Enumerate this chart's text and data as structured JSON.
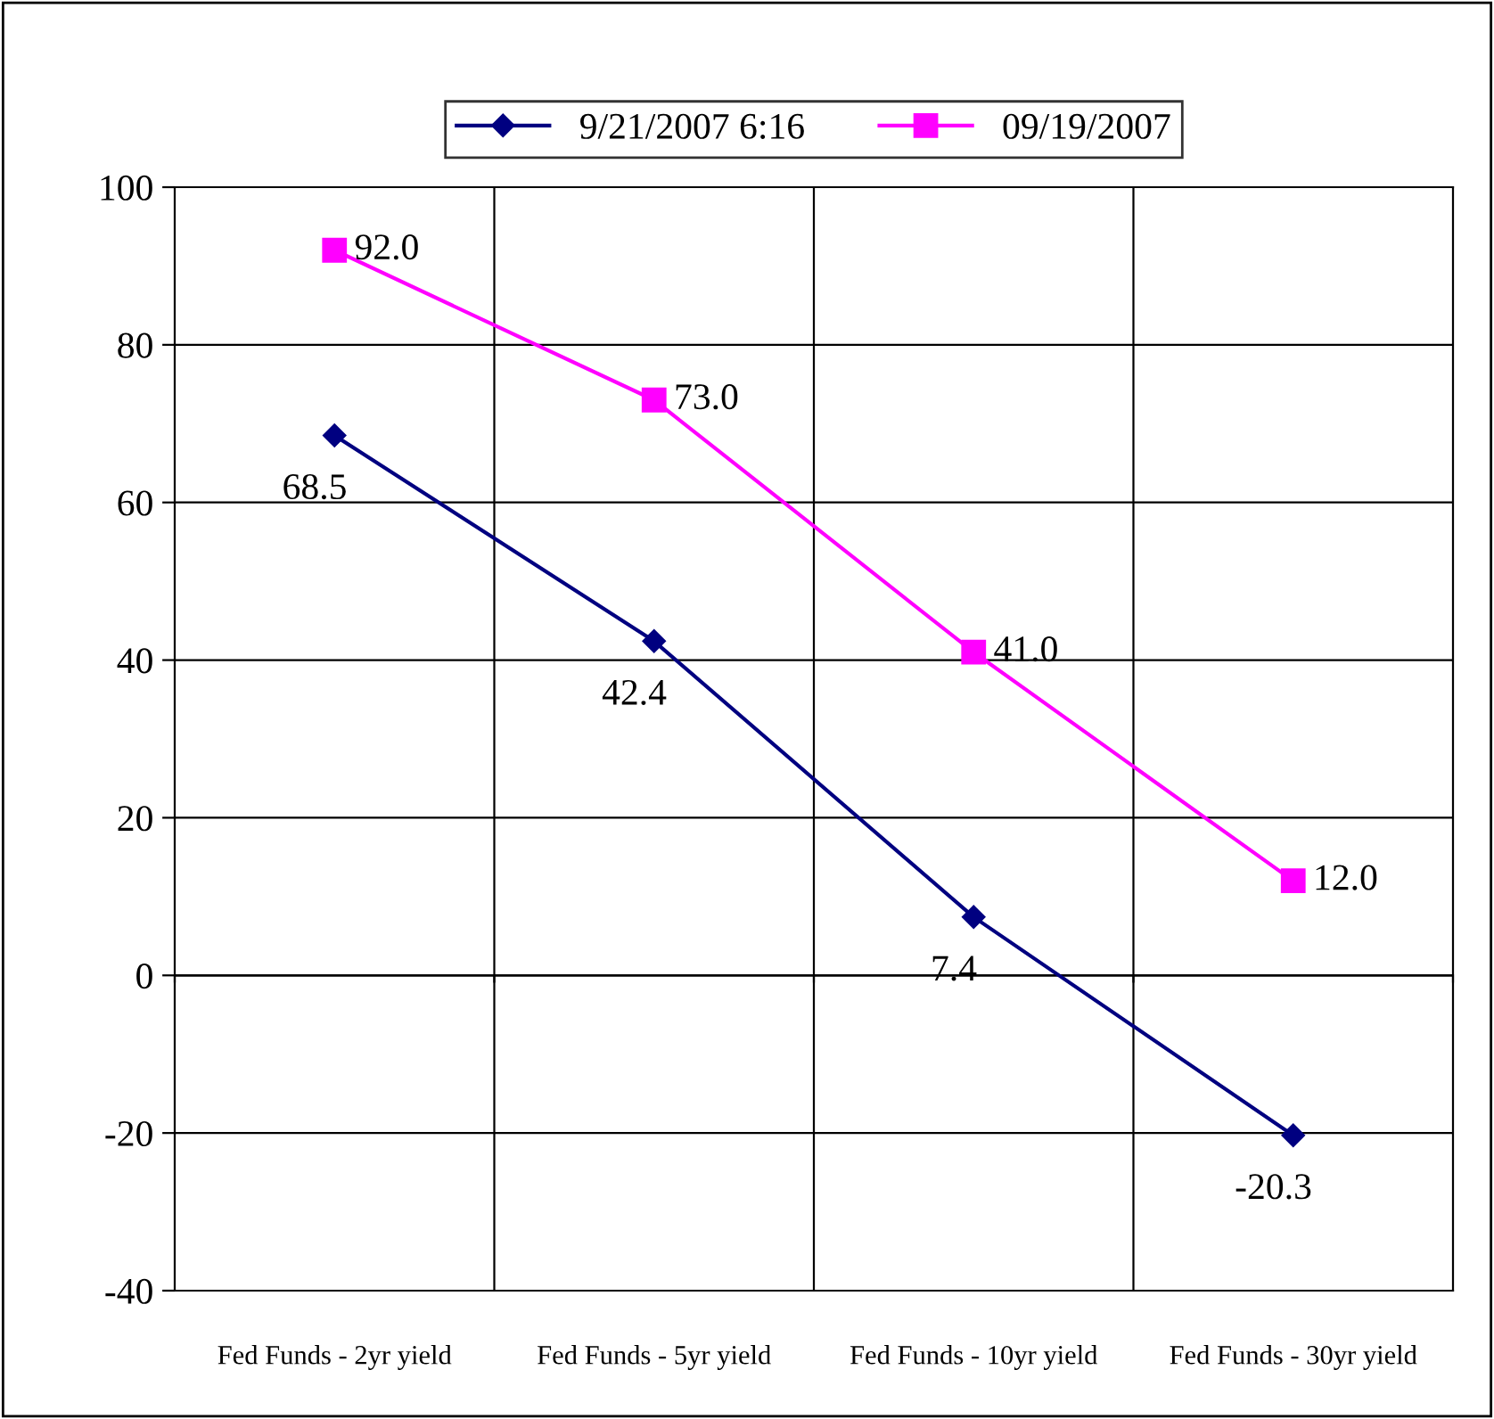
{
  "chart_data": {
    "type": "line",
    "categories": [
      "Fed Funds - 2yr yield",
      "Fed Funds - 5yr yield",
      "Fed Funds - 10yr yield",
      "Fed Funds - 30yr yield"
    ],
    "series": [
      {
        "name": "9/21/2007 6:16",
        "color": "#000080",
        "marker": "diamond",
        "values": [
          68.5,
          42.4,
          7.4,
          -20.3
        ],
        "value_labels": [
          "68.5",
          "42.4",
          "7.4",
          "-20.3"
        ]
      },
      {
        "name": "09/19/2007",
        "color": "#ff00ff",
        "marker": "square",
        "values": [
          92.0,
          73.0,
          41.0,
          12.0
        ],
        "value_labels": [
          "92.0",
          "73.0",
          "41.0",
          "12.0"
        ]
      }
    ],
    "ylim": [
      -40,
      100
    ],
    "yticks": [
      -40,
      -20,
      0,
      20,
      40,
      60,
      80,
      100
    ],
    "grid": true,
    "legend": "top",
    "line_style": "solid"
  }
}
